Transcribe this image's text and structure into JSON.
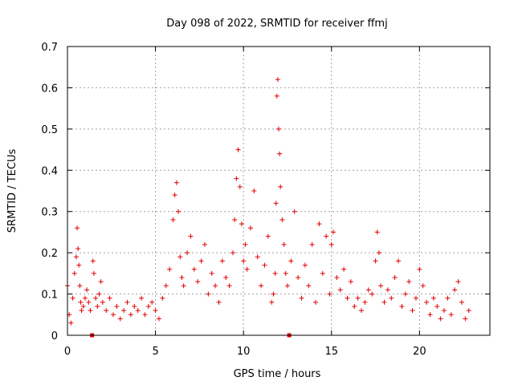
{
  "chart_data": {
    "type": "scatter",
    "title": "Day 098 of 2022, SRMTID for receiver ffmj",
    "xlabel": "GPS time / hours",
    "ylabel": "SRMTID / TECUs",
    "xlim": [
      0,
      24
    ],
    "ylim": [
      0,
      0.7
    ],
    "grid": true,
    "x_ticks": [
      0,
      5,
      10,
      15,
      20
    ],
    "x_tick_labels": [
      "0",
      "5",
      "10",
      "15",
      "20"
    ],
    "y_ticks": [
      0,
      0.1,
      0.2,
      0.3,
      0.4,
      0.5,
      0.6,
      0.7
    ],
    "y_tick_labels": [
      "0",
      "0.1",
      "0.2",
      "0.3",
      "0.4",
      "0.5",
      "0.6",
      "0.7"
    ],
    "marker": "plus",
    "color": "#e00000",
    "zero_markers": [
      1.4,
      12.6
    ],
    "series": [
      {
        "name": "SRMTID",
        "x": [
          0.0,
          0.1,
          0.2,
          0.3,
          0.4,
          0.5,
          0.55,
          0.6,
          0.65,
          0.7,
          0.75,
          0.8,
          0.9,
          1.0,
          1.1,
          1.2,
          1.3,
          1.45,
          1.5,
          1.6,
          1.7,
          1.8,
          1.9,
          2.0,
          2.2,
          2.4,
          2.6,
          2.8,
          3.0,
          3.2,
          3.4,
          3.6,
          3.8,
          4.0,
          4.2,
          4.4,
          4.6,
          4.8,
          5.0,
          5.2,
          5.4,
          5.6,
          5.8,
          6.0,
          6.1,
          6.2,
          6.3,
          6.4,
          6.5,
          6.6,
          6.8,
          7.0,
          7.2,
          7.4,
          7.6,
          7.8,
          8.0,
          8.2,
          8.4,
          8.6,
          8.8,
          9.0,
          9.2,
          9.4,
          9.5,
          9.6,
          9.7,
          9.8,
          9.9,
          10.0,
          10.1,
          10.2,
          10.4,
          10.6,
          10.8,
          11.0,
          11.2,
          11.4,
          11.6,
          11.7,
          11.8,
          11.85,
          11.9,
          11.95,
          12.0,
          12.05,
          12.1,
          12.2,
          12.3,
          12.4,
          12.5,
          12.7,
          12.9,
          13.1,
          13.3,
          13.5,
          13.7,
          13.9,
          14.1,
          14.3,
          14.5,
          14.7,
          14.9,
          15.0,
          15.1,
          15.3,
          15.5,
          15.7,
          15.9,
          16.1,
          16.3,
          16.5,
          16.7,
          16.9,
          17.1,
          17.3,
          17.5,
          17.6,
          17.7,
          17.8,
          18.0,
          18.2,
          18.4,
          18.6,
          18.8,
          19.0,
          19.2,
          19.4,
          19.6,
          19.8,
          20.0,
          20.2,
          20.4,
          20.6,
          20.8,
          21.0,
          21.2,
          21.4,
          21.6,
          21.8,
          22.0,
          22.2,
          22.4,
          22.6,
          22.8
        ],
        "y": [
          0.12,
          0.05,
          0.03,
          0.09,
          0.15,
          0.19,
          0.26,
          0.21,
          0.17,
          0.12,
          0.08,
          0.06,
          0.07,
          0.09,
          0.11,
          0.08,
          0.06,
          0.18,
          0.15,
          0.09,
          0.07,
          0.1,
          0.13,
          0.08,
          0.06,
          0.09,
          0.05,
          0.07,
          0.04,
          0.06,
          0.08,
          0.05,
          0.07,
          0.06,
          0.09,
          0.05,
          0.07,
          0.08,
          0.06,
          0.04,
          0.09,
          0.12,
          0.16,
          0.28,
          0.34,
          0.37,
          0.3,
          0.19,
          0.14,
          0.12,
          0.2,
          0.24,
          0.16,
          0.13,
          0.18,
          0.22,
          0.1,
          0.15,
          0.12,
          0.08,
          0.18,
          0.14,
          0.12,
          0.2,
          0.28,
          0.38,
          0.45,
          0.36,
          0.27,
          0.18,
          0.22,
          0.16,
          0.26,
          0.35,
          0.19,
          0.12,
          0.17,
          0.24,
          0.08,
          0.1,
          0.15,
          0.32,
          0.58,
          0.62,
          0.5,
          0.44,
          0.36,
          0.28,
          0.22,
          0.15,
          0.12,
          0.18,
          0.3,
          0.14,
          0.09,
          0.17,
          0.12,
          0.22,
          0.08,
          0.27,
          0.15,
          0.24,
          0.1,
          0.22,
          0.25,
          0.14,
          0.11,
          0.16,
          0.09,
          0.13,
          0.07,
          0.09,
          0.06,
          0.08,
          0.11,
          0.1,
          0.18,
          0.25,
          0.2,
          0.12,
          0.08,
          0.11,
          0.09,
          0.14,
          0.18,
          0.07,
          0.1,
          0.13,
          0.06,
          0.09,
          0.16,
          0.12,
          0.08,
          0.05,
          0.09,
          0.07,
          0.04,
          0.06,
          0.09,
          0.05,
          0.11,
          0.13,
          0.08,
          0.04,
          0.06
        ]
      }
    ]
  }
}
